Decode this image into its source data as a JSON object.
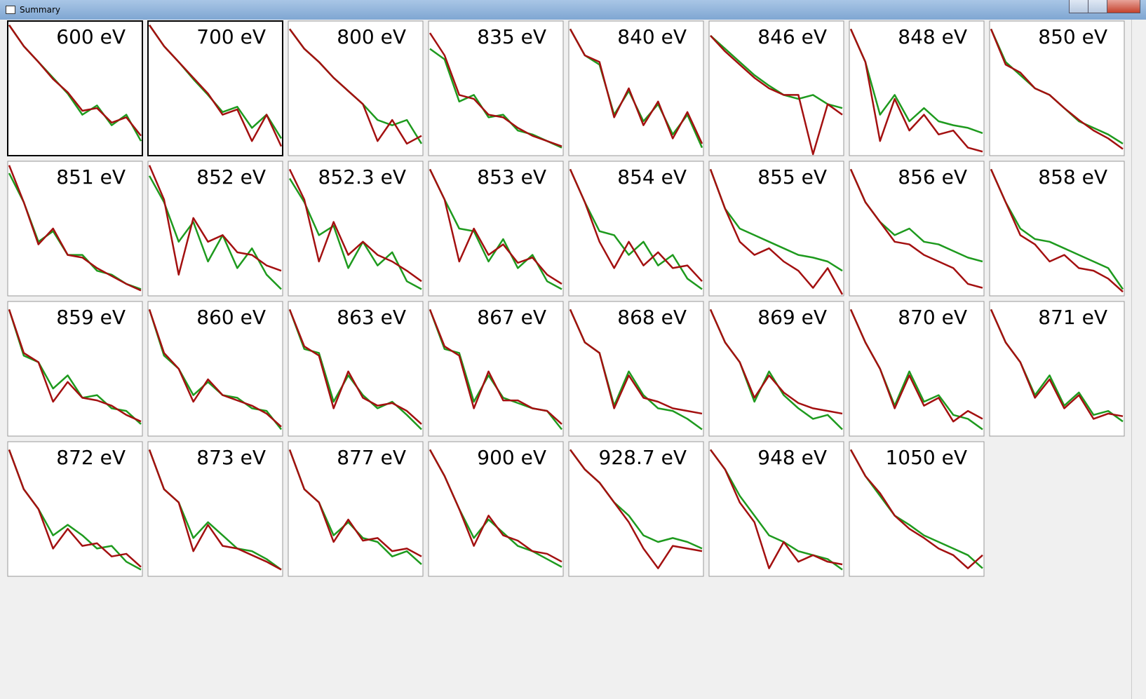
{
  "window": {
    "title": "Summary"
  },
  "ylim": [
    0,
    100
  ],
  "curve_colors": [
    "#1e9a1e",
    "#a31010"
  ],
  "panels": [
    {
      "label": "600 eV",
      "curves": [
        [
          98,
          82,
          70,
          58,
          46,
          30,
          37,
          22,
          30,
          10
        ],
        [
          98,
          82,
          70,
          57,
          47,
          33,
          35,
          24,
          28,
          14
        ]
      ]
    },
    {
      "label": "700 eV",
      "curves": [
        [
          98,
          82,
          70,
          57,
          45,
          32,
          36,
          20,
          30,
          12
        ],
        [
          98,
          82,
          70,
          58,
          46,
          30,
          34,
          10,
          30,
          6
        ]
      ]
    },
    {
      "label": "800 eV",
      "curves": [
        [
          95,
          80,
          70,
          58,
          48,
          38,
          26,
          22,
          26,
          8
        ],
        [
          95,
          80,
          70,
          58,
          48,
          38,
          10,
          26,
          8,
          14
        ]
      ]
    },
    {
      "label": "835 eV",
      "curves": [
        [
          80,
          72,
          40,
          45,
          28,
          30,
          18,
          15,
          10,
          5
        ],
        [
          92,
          75,
          45,
          42,
          30,
          28,
          20,
          14,
          10,
          6
        ]
      ]
    },
    {
      "label": "840 eV",
      "curves": [
        [
          95,
          75,
          68,
          30,
          48,
          25,
          38,
          15,
          30,
          5
        ],
        [
          95,
          75,
          70,
          28,
          50,
          22,
          40,
          12,
          32,
          8
        ]
      ]
    },
    {
      "label": "846 eV",
      "curves": [
        [
          90,
          80,
          70,
          60,
          52,
          45,
          42,
          45,
          38,
          35
        ],
        [
          90,
          78,
          68,
          58,
          50,
          45,
          45,
          0,
          38,
          30
        ]
      ]
    },
    {
      "label": "848 eV",
      "curves": [
        [
          95,
          70,
          30,
          45,
          25,
          35,
          25,
          22,
          20,
          16
        ],
        [
          95,
          70,
          10,
          42,
          18,
          30,
          15,
          18,
          5,
          2
        ]
      ]
    },
    {
      "label": "850 eV",
      "curves": [
        [
          95,
          70,
          60,
          50,
          45,
          35,
          25,
          20,
          15,
          8
        ],
        [
          95,
          68,
          62,
          50,
          45,
          35,
          26,
          18,
          12,
          4
        ]
      ]
    },
    {
      "label": "851 eV",
      "curves": [
        [
          92,
          70,
          40,
          48,
          30,
          30,
          18,
          15,
          8,
          4
        ],
        [
          98,
          70,
          38,
          50,
          30,
          28,
          20,
          14,
          8,
          3
        ]
      ]
    },
    {
      "label": "852 eV",
      "curves": [
        [
          90,
          70,
          40,
          55,
          25,
          45,
          20,
          35,
          15,
          4
        ],
        [
          98,
          72,
          15,
          58,
          40,
          45,
          32,
          30,
          22,
          18
        ]
      ]
    },
    {
      "label": "852.3 eV",
      "curves": [
        [
          88,
          70,
          45,
          52,
          20,
          40,
          22,
          32,
          10,
          4
        ],
        [
          95,
          72,
          25,
          55,
          30,
          40,
          30,
          25,
          18,
          10
        ]
      ]
    },
    {
      "label": "853 eV",
      "curves": [
        [
          95,
          72,
          50,
          48,
          25,
          42,
          20,
          30,
          10,
          4
        ],
        [
          95,
          72,
          25,
          50,
          30,
          38,
          24,
          28,
          15,
          8
        ]
      ]
    },
    {
      "label": "854 eV",
      "curves": [
        [
          95,
          70,
          48,
          45,
          30,
          40,
          22,
          30,
          12,
          4
        ],
        [
          95,
          70,
          40,
          20,
          40,
          22,
          32,
          20,
          22,
          10
        ]
      ]
    },
    {
      "label": "855 eV",
      "curves": [
        [
          95,
          65,
          50,
          45,
          40,
          35,
          30,
          28,
          25,
          18
        ],
        [
          95,
          65,
          40,
          30,
          35,
          25,
          18,
          5,
          20,
          0
        ]
      ]
    },
    {
      "label": "856 eV",
      "curves": [
        [
          95,
          70,
          55,
          45,
          50,
          40,
          38,
          33,
          28,
          25
        ],
        [
          95,
          70,
          55,
          40,
          38,
          30,
          25,
          20,
          8,
          5
        ]
      ]
    },
    {
      "label": "858 eV",
      "curves": [
        [
          95,
          70,
          50,
          42,
          40,
          35,
          30,
          25,
          20,
          4
        ],
        [
          95,
          70,
          45,
          38,
          25,
          30,
          20,
          18,
          12,
          2
        ]
      ]
    },
    {
      "label": "859 eV",
      "curves": [
        [
          95,
          60,
          55,
          35,
          45,
          28,
          30,
          20,
          18,
          8
        ],
        [
          95,
          62,
          55,
          25,
          40,
          28,
          26,
          22,
          15,
          10
        ]
      ]
    },
    {
      "label": "860 eV",
      "curves": [
        [
          95,
          60,
          50,
          30,
          40,
          30,
          28,
          20,
          18,
          4
        ],
        [
          95,
          62,
          50,
          25,
          42,
          30,
          26,
          22,
          16,
          6
        ]
      ]
    },
    {
      "label": "863 eV",
      "curves": [
        [
          95,
          65,
          62,
          25,
          45,
          30,
          20,
          25,
          15,
          4
        ],
        [
          95,
          67,
          60,
          20,
          48,
          28,
          22,
          24,
          18,
          8
        ]
      ]
    },
    {
      "label": "867 eV",
      "curves": [
        [
          95,
          65,
          62,
          25,
          45,
          28,
          24,
          20,
          18,
          4
        ],
        [
          95,
          67,
          60,
          20,
          48,
          26,
          26,
          20,
          18,
          8
        ]
      ]
    },
    {
      "label": "868 eV",
      "curves": [
        [
          95,
          70,
          62,
          22,
          48,
          30,
          20,
          18,
          12,
          4
        ],
        [
          95,
          70,
          62,
          20,
          45,
          28,
          25,
          20,
          18,
          16
        ]
      ]
    },
    {
      "label": "869 eV",
      "curves": [
        [
          95,
          70,
          55,
          25,
          48,
          30,
          20,
          12,
          15,
          4
        ],
        [
          95,
          70,
          55,
          28,
          45,
          32,
          24,
          20,
          18,
          16
        ]
      ]
    },
    {
      "label": "870 eV",
      "curves": [
        [
          95,
          70,
          50,
          22,
          48,
          25,
          30,
          15,
          12,
          4
        ],
        [
          95,
          70,
          50,
          20,
          45,
          22,
          28,
          10,
          18,
          12
        ]
      ]
    },
    {
      "label": "871 eV",
      "curves": [
        [
          95,
          70,
          55,
          30,
          45,
          22,
          32,
          15,
          18,
          10
        ],
        [
          95,
          70,
          55,
          28,
          42,
          20,
          30,
          12,
          16,
          14
        ]
      ]
    },
    {
      "label": "872 eV",
      "curves": [
        [
          95,
          65,
          50,
          30,
          38,
          30,
          20,
          22,
          10,
          4
        ],
        [
          95,
          65,
          50,
          20,
          35,
          22,
          24,
          14,
          16,
          6
        ]
      ]
    },
    {
      "label": "873 eV",
      "curves": [
        [
          95,
          65,
          55,
          28,
          40,
          30,
          20,
          18,
          12,
          4
        ],
        [
          95,
          65,
          55,
          18,
          38,
          22,
          20,
          15,
          10,
          4
        ]
      ]
    },
    {
      "label": "877 eV",
      "curves": [
        [
          95,
          65,
          55,
          30,
          40,
          28,
          25,
          14,
          18,
          8
        ],
        [
          95,
          65,
          55,
          25,
          42,
          26,
          28,
          18,
          20,
          14
        ]
      ]
    },
    {
      "label": "900 eV",
      "curves": [
        [
          95,
          75,
          50,
          28,
          42,
          32,
          22,
          18,
          12,
          6
        ],
        [
          95,
          75,
          50,
          22,
          45,
          30,
          26,
          18,
          16,
          10
        ]
      ]
    },
    {
      "label": "928.7 eV",
      "curves": [
        [
          95,
          80,
          70,
          55,
          45,
          30,
          25,
          28,
          25,
          20
        ],
        [
          95,
          80,
          70,
          55,
          40,
          20,
          5,
          22,
          20,
          18
        ]
      ]
    },
    {
      "label": "948 eV",
      "curves": [
        [
          95,
          80,
          60,
          45,
          30,
          25,
          18,
          15,
          12,
          4
        ],
        [
          95,
          80,
          55,
          40,
          5,
          25,
          10,
          15,
          10,
          8
        ]
      ]
    },
    {
      "label": "1050 eV",
      "curves": [
        [
          95,
          75,
          60,
          45,
          38,
          30,
          25,
          20,
          15,
          5
        ],
        [
          95,
          75,
          62,
          45,
          35,
          28,
          20,
          15,
          5,
          15
        ]
      ]
    }
  ]
}
